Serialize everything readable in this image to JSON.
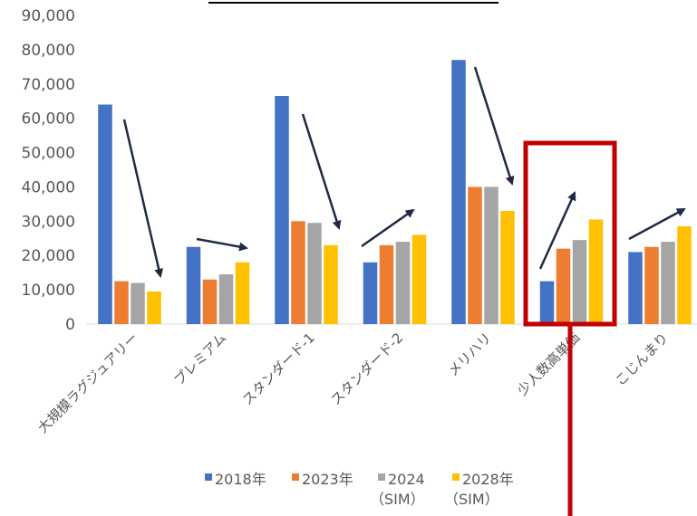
{
  "colors": {
    "series": [
      "#4472C4",
      "#ED7D31",
      "#A5A5A5",
      "#FFC000"
    ],
    "axis_text": "#595959",
    "arrow": "#1F2A44",
    "highlight": "#C00000"
  },
  "chart_data": {
    "type": "bar",
    "title": "",
    "xlabel": "",
    "ylabel": "",
    "ylim": [
      0,
      90000
    ],
    "y_ticks": [
      "0",
      "10,000",
      "20,000",
      "30,000",
      "40,000",
      "50,000",
      "60,000",
      "70,000",
      "80,000",
      "90,000"
    ],
    "grid": false,
    "legend_position": "bottom",
    "categories": [
      "大規模ラグジュアリー",
      "プレミアム",
      "スタンダード-1",
      "スタンダード-2",
      "メリハリ",
      "少人数高単価",
      "こじんまり"
    ],
    "series": [
      {
        "name": "2018年",
        "legend_lines": [
          "2018年"
        ],
        "values": [
          64000,
          22500,
          66500,
          18000,
          77000,
          12500,
          21000
        ]
      },
      {
        "name": "2023年",
        "legend_lines": [
          "2023年"
        ],
        "values": [
          12500,
          13000,
          30000,
          23000,
          40000,
          22000,
          22500
        ]
      },
      {
        "name": "2024（SIM）",
        "legend_lines": [
          "2024",
          "（SIM）"
        ],
        "values": [
          12000,
          14500,
          29500,
          24000,
          40000,
          24500,
          24000
        ]
      },
      {
        "name": "2028年（SIM）",
        "legend_lines": [
          "2028年",
          "（SIM）"
        ],
        "values": [
          9500,
          18000,
          23000,
          26000,
          33000,
          30500,
          28500
        ]
      }
    ],
    "highlighted_category": "少人数高単価"
  }
}
